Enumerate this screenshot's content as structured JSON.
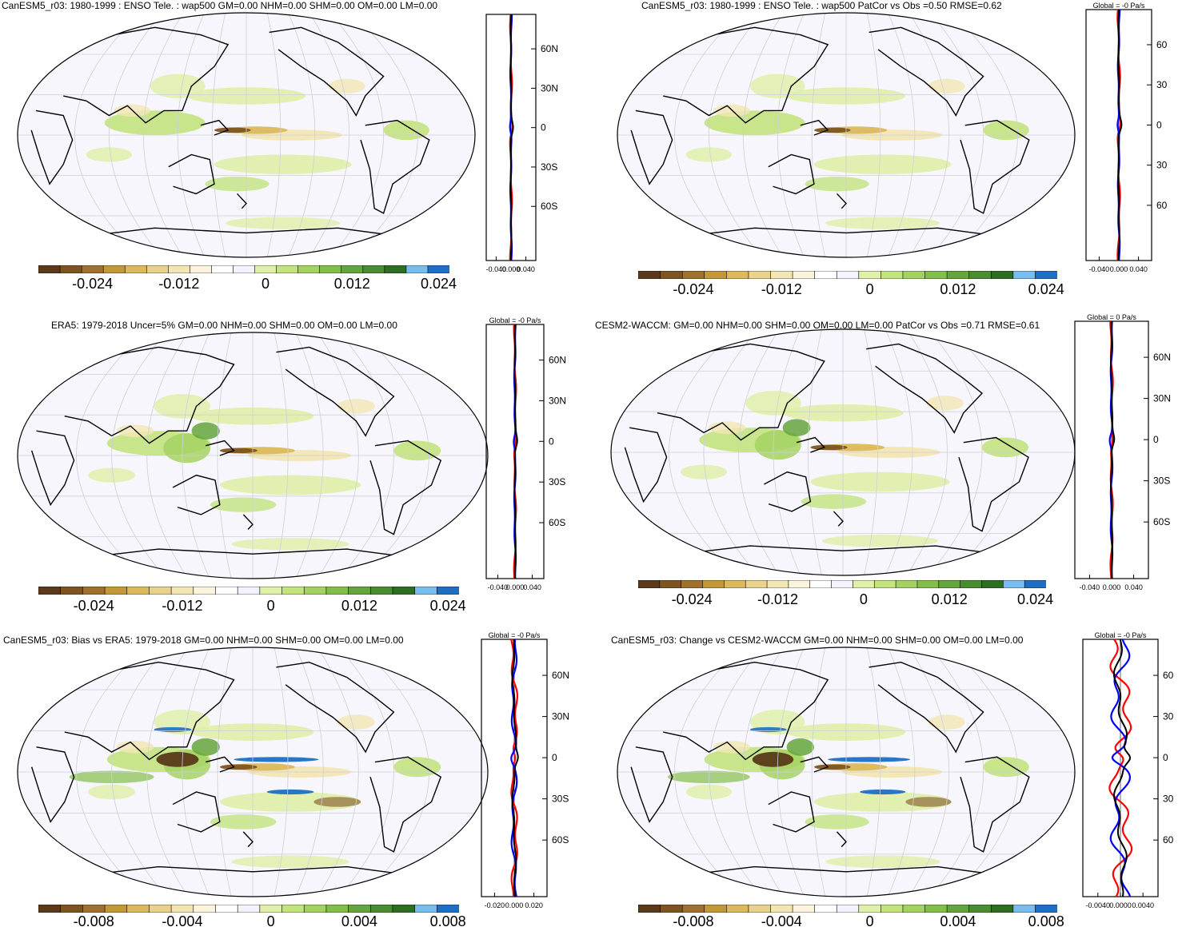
{
  "colors": {
    "scale": [
      "#5a3a1a",
      "#7e5420",
      "#a0702e",
      "#c39838",
      "#dbb95c",
      "#e8d28c",
      "#f2e6b4",
      "#faf4dc",
      "#ffffff",
      "#f4f2fc",
      "#dff0a8",
      "#c3e37e",
      "#a4d262",
      "#84be4a",
      "#65a63c",
      "#4a8c30",
      "#2e6e22",
      "#78bdf0",
      "#1e6fc4"
    ],
    "ocean": "#f6f6fc",
    "coast": "#000000",
    "line_obs": "#0000ff",
    "line_model": "#ff0000",
    "line_mean": "#000000"
  },
  "panels": [
    {
      "id": "p1",
      "title": "CanESM5_r03: 1980-1999 : ENSO Tele. : wap500 GM=0.00 NHM=0.00 SHM=0.00 OM=0.00 LM=0.00",
      "cb_ticks": [
        "-0.024",
        "-0.012",
        "0",
        "0.012",
        "0.024"
      ],
      "side_xticks": [
        "-0.040",
        "0.000",
        "0.040"
      ],
      "side_lat": [
        "60N",
        "30N",
        "0",
        "30S",
        "60S"
      ],
      "side_title": "",
      "pattern": "model"
    },
    {
      "id": "p2",
      "title": "CanESM5_r03: 1980-1999 : ENSO Tele. : wap500 PatCor vs Obs =0.50 RMSE=0.62",
      "cb_ticks": [
        "-0.024",
        "-0.012",
        "0",
        "0.012",
        "0.024"
      ],
      "side_xticks": [
        "-0.040",
        "0.000",
        "0.040"
      ],
      "side_lat": [
        "60",
        "30",
        "0",
        "30",
        "60"
      ],
      "side_title": "Global = -0 Pa/s",
      "pattern": "model"
    },
    {
      "id": "p3",
      "title": "ERA5: 1979-2018 Uncer=5% GM=0.00 NHM=0.00 SHM=0.00 OM=0.00 LM=0.00",
      "cb_ticks": [
        "-0.024",
        "-0.012",
        "0",
        "0.012",
        "0.024"
      ],
      "side_xticks": [
        "-0.040",
        "0.000",
        "0.040"
      ],
      "side_lat": [
        "60N",
        "30N",
        "0",
        "30S",
        "60S"
      ],
      "side_title": "Global = -0 Pa/s",
      "pattern": "obs"
    },
    {
      "id": "p4",
      "title": "CESM2-WACCM: GM=0.00 NHM=0.00 SHM=0.00 OM=0.00 LM=0.00 PatCor vs Obs =0.71 RMSE=0.61",
      "cb_ticks": [
        "-0.024",
        "-0.012",
        "0",
        "0.012",
        "0.024"
      ],
      "side_xticks": [
        "-0.040",
        "0.000",
        "0.040"
      ],
      "side_lat": [
        "60N",
        "30N",
        "0",
        "30S",
        "60S"
      ],
      "side_title": "Global = 0 Pa/s",
      "pattern": "obs"
    },
    {
      "id": "p5",
      "title": "CanESM5_r03: Bias vs ERA5: 1979-2018 GM=0.00 NHM=0.00 SHM=0.00 OM=0.00 LM=0.00",
      "cb_ticks": [
        "-0.008",
        "-0.004",
        "0",
        "0.004",
        "0.008"
      ],
      "side_xticks": [
        "-0.020",
        "0.000",
        "0.020"
      ],
      "side_lat": [
        "60N",
        "30N",
        "0",
        "30S",
        "60S"
      ],
      "side_title": "Global = -0 Pa/s",
      "pattern": "bias"
    },
    {
      "id": "p6",
      "title": "CanESM5_r03: Change vs CESM2-WACCM GM=0.00 NHM=0.00 SHM=0.00 OM=0.00 LM=0.00",
      "cb_ticks": [
        "-0.008",
        "-0.004",
        "0",
        "0.004",
        "0.008"
      ],
      "side_xticks": [
        "-0.0040",
        "0.0000",
        "0.0040"
      ],
      "side_lat": [
        "60",
        "30",
        "0",
        "30",
        "60"
      ],
      "side_title": "Global = -0 Pa/s",
      "pattern": "bias"
    }
  ]
}
